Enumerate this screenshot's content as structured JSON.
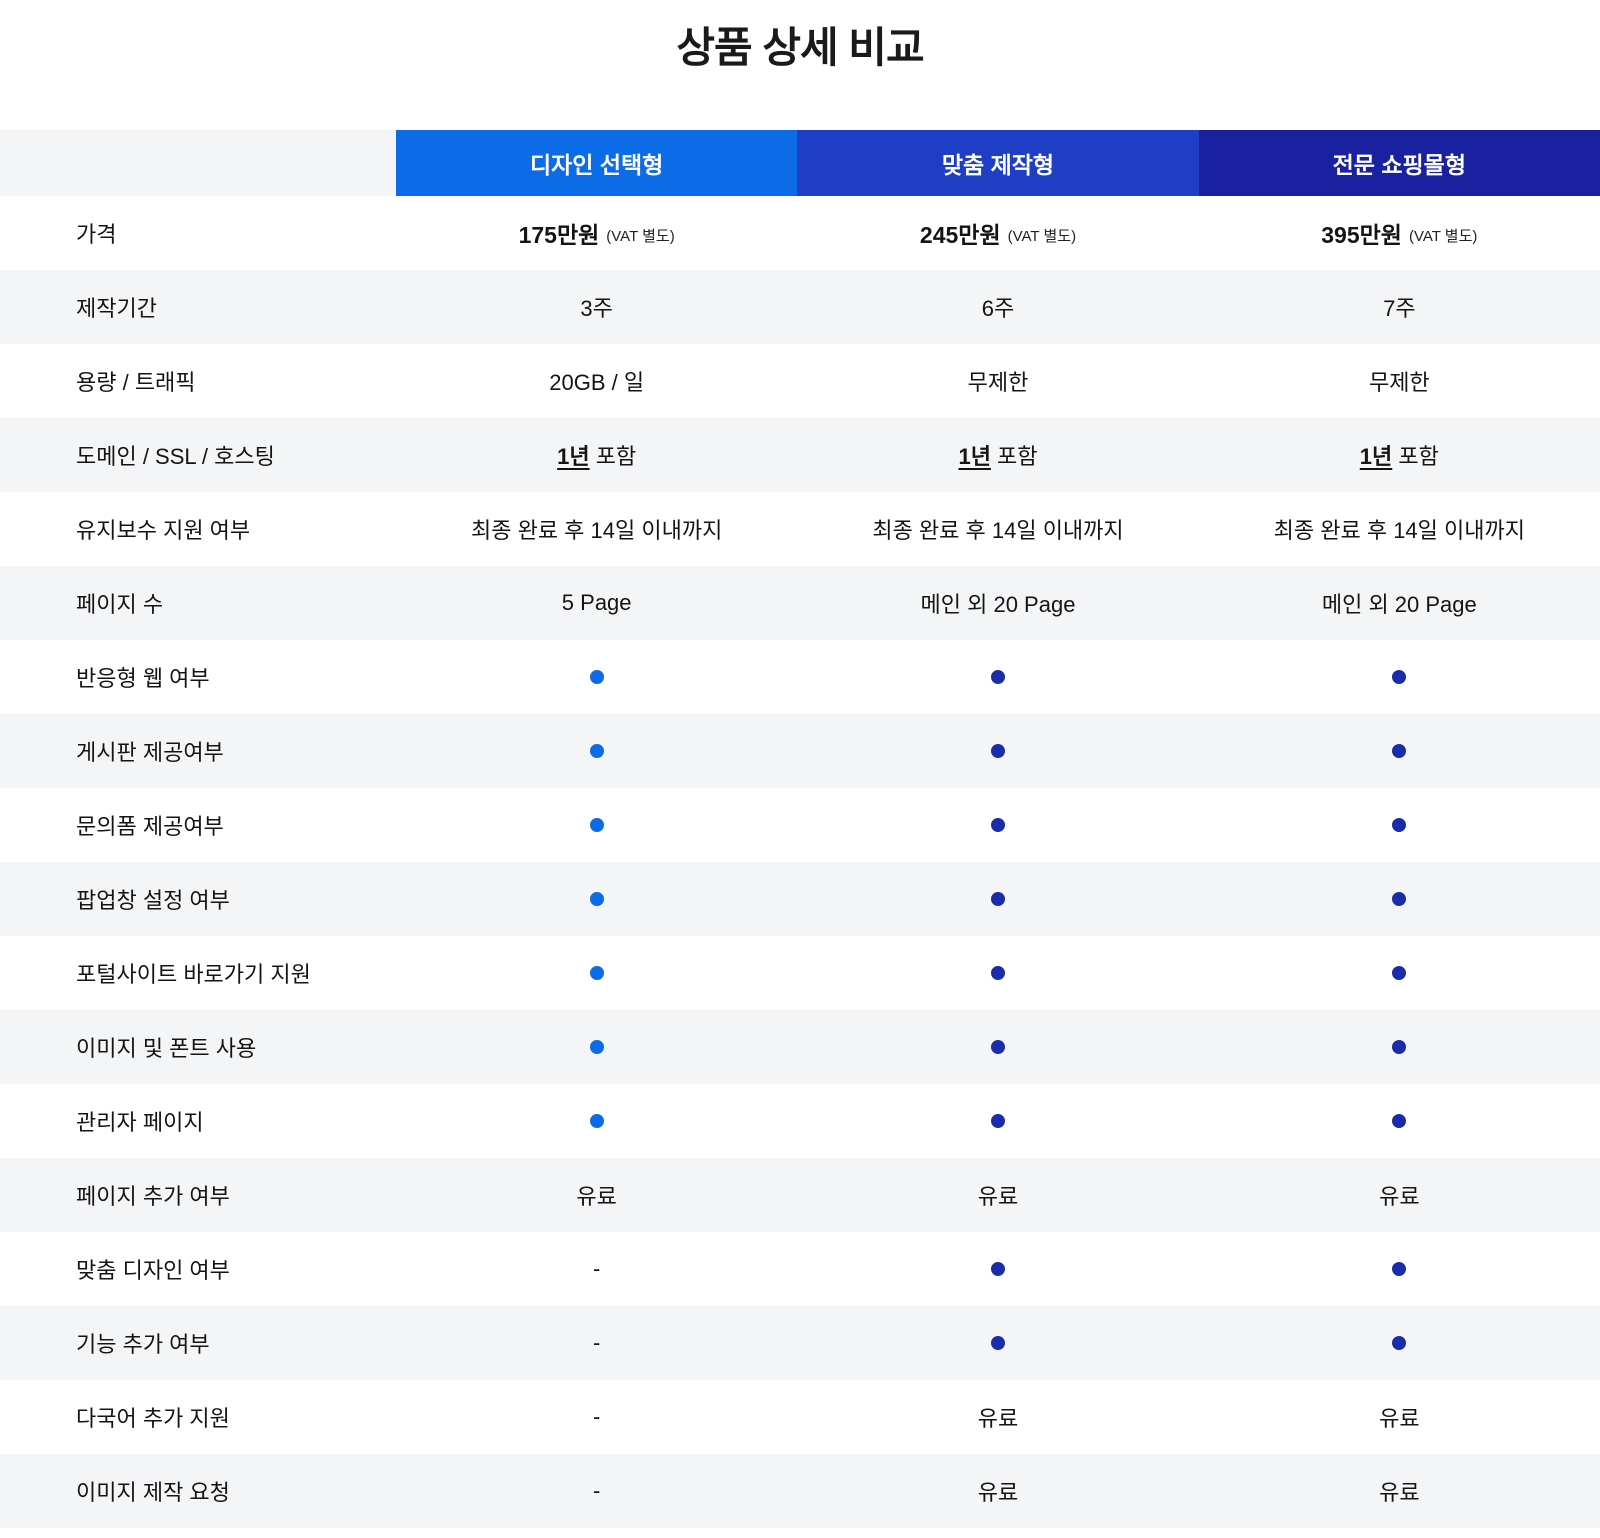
{
  "title": "상품 상세 비교",
  "columns": [
    {
      "label": "디자인 선택형",
      "header_color": "#0c6be6",
      "circle_color": "#0c6be6"
    },
    {
      "label": "맞춤 제작형",
      "header_color": "#1e3ec6",
      "circle_color": "#1a2bab"
    },
    {
      "label": "전문 쇼핑몰형",
      "header_color": "#1a21a0",
      "circle_color": "#1a2bab"
    }
  ],
  "colors": {
    "stripe": "#f4f5f6",
    "text": "#141414"
  },
  "rows": [
    {
      "label": "가격",
      "cells": [
        {
          "kind": "price",
          "main": "175만원",
          "sub": "(VAT 별도)"
        },
        {
          "kind": "price",
          "main": "245만원",
          "sub": "(VAT 별도)"
        },
        {
          "kind": "price",
          "main": "395만원",
          "sub": "(VAT 별도)"
        }
      ]
    },
    {
      "label": "제작기간",
      "cells": [
        {
          "kind": "text",
          "text": "3주"
        },
        {
          "kind": "text",
          "text": "6주"
        },
        {
          "kind": "text",
          "text": "7주"
        }
      ]
    },
    {
      "label": "용량 / 트래픽",
      "cells": [
        {
          "kind": "text",
          "text": "20GB / 일"
        },
        {
          "kind": "text",
          "text": "무제한"
        },
        {
          "kind": "text",
          "text": "무제한"
        }
      ]
    },
    {
      "label": "도메인 / SSL / 호스팅",
      "cells": [
        {
          "kind": "underline",
          "underline": "1년",
          "rest": "포함"
        },
        {
          "kind": "underline",
          "underline": "1년",
          "rest": "포함"
        },
        {
          "kind": "underline",
          "underline": "1년",
          "rest": "포함"
        }
      ]
    },
    {
      "label": "유지보수 지원 여부",
      "cells": [
        {
          "kind": "text",
          "text": "최종 완료 후 14일 이내까지"
        },
        {
          "kind": "text",
          "text": "최종 완료 후 14일 이내까지"
        },
        {
          "kind": "text",
          "text": "최종 완료 후 14일 이내까지"
        }
      ]
    },
    {
      "label": "페이지 수",
      "cells": [
        {
          "kind": "text",
          "text": "5 Page"
        },
        {
          "kind": "text",
          "text": "메인 외 20 Page"
        },
        {
          "kind": "text",
          "text": "메인 외 20 Page"
        }
      ]
    },
    {
      "label": "반응형 웹 여부",
      "cells": [
        {
          "kind": "circle"
        },
        {
          "kind": "circle"
        },
        {
          "kind": "circle"
        }
      ]
    },
    {
      "label": "게시판 제공여부",
      "cells": [
        {
          "kind": "circle"
        },
        {
          "kind": "circle"
        },
        {
          "kind": "circle"
        }
      ]
    },
    {
      "label": "문의폼 제공여부",
      "cells": [
        {
          "kind": "circle"
        },
        {
          "kind": "circle"
        },
        {
          "kind": "circle"
        }
      ]
    },
    {
      "label": "팝업창 설정 여부",
      "cells": [
        {
          "kind": "circle"
        },
        {
          "kind": "circle"
        },
        {
          "kind": "circle"
        }
      ]
    },
    {
      "label": "포털사이트 바로가기 지원",
      "cells": [
        {
          "kind": "circle"
        },
        {
          "kind": "circle"
        },
        {
          "kind": "circle"
        }
      ]
    },
    {
      "label": "이미지 및 폰트 사용",
      "cells": [
        {
          "kind": "circle"
        },
        {
          "kind": "circle"
        },
        {
          "kind": "circle"
        }
      ]
    },
    {
      "label": "관리자 페이지",
      "cells": [
        {
          "kind": "circle"
        },
        {
          "kind": "circle"
        },
        {
          "kind": "circle"
        }
      ]
    },
    {
      "label": "페이지 추가 여부",
      "cells": [
        {
          "kind": "text",
          "text": "유료"
        },
        {
          "kind": "text",
          "text": "유료"
        },
        {
          "kind": "text",
          "text": "유료"
        }
      ]
    },
    {
      "label": "맞춤 디자인 여부",
      "cells": [
        {
          "kind": "dash",
          "text": "-"
        },
        {
          "kind": "circle"
        },
        {
          "kind": "circle"
        }
      ]
    },
    {
      "label": "기능 추가 여부",
      "cells": [
        {
          "kind": "dash",
          "text": "-"
        },
        {
          "kind": "circle"
        },
        {
          "kind": "circle"
        }
      ]
    },
    {
      "label": "다국어 추가 지원",
      "cells": [
        {
          "kind": "dash",
          "text": "-"
        },
        {
          "kind": "text",
          "text": "유료"
        },
        {
          "kind": "text",
          "text": "유료"
        }
      ]
    },
    {
      "label": "이미지 제작 요청",
      "cells": [
        {
          "kind": "dash",
          "text": "-"
        },
        {
          "kind": "text",
          "text": "유료"
        },
        {
          "kind": "text",
          "text": "유료"
        }
      ]
    }
  ]
}
